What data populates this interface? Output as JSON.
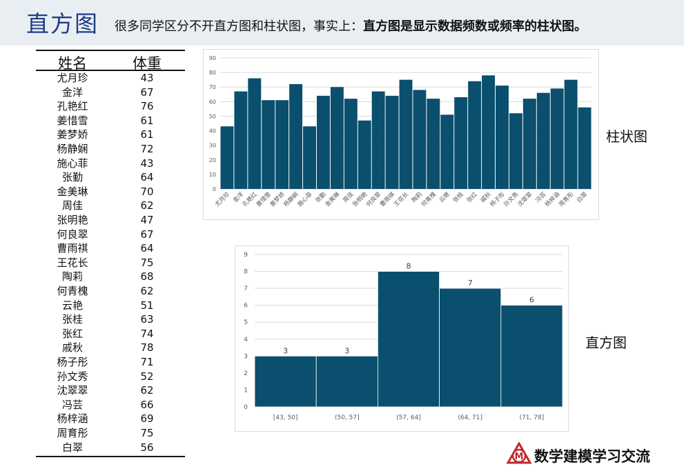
{
  "header": {
    "title": "直方图",
    "subtitle_plain": "很多同学区分不开直方图和柱状图，事实上：",
    "subtitle_bold": "直方图是显示数据频数或频率的柱状图。"
  },
  "table": {
    "headers": [
      "姓名",
      "体重"
    ],
    "rows": [
      [
        "尤月珍",
        "43"
      ],
      [
        "金洋",
        "67"
      ],
      [
        "孔艳红",
        "76"
      ],
      [
        "姜惜雪",
        "61"
      ],
      [
        "姜梦娇",
        "61"
      ],
      [
        "杨静娴",
        "72"
      ],
      [
        "施心菲",
        "43"
      ],
      [
        "张勤",
        "64"
      ],
      [
        "金美琳",
        "70"
      ],
      [
        "周佳",
        "62"
      ],
      [
        "张明艳",
        "47"
      ],
      [
        "何良翠",
        "67"
      ],
      [
        "曹雨祺",
        "64"
      ],
      [
        "王花长",
        "75"
      ],
      [
        "陶莉",
        "68"
      ],
      [
        "何青槐",
        "62"
      ],
      [
        "云艳",
        "51"
      ],
      [
        "张桂",
        "63"
      ],
      [
        "张红",
        "74"
      ],
      [
        "戚秋",
        "78"
      ],
      [
        "杨子彤",
        "71"
      ],
      [
        "孙文秀",
        "52"
      ],
      [
        "沈翠翠",
        "62"
      ],
      [
        "冯芸",
        "66"
      ],
      [
        "杨梓涵",
        "69"
      ],
      [
        "周育彤",
        "75"
      ],
      [
        "白翠",
        "56"
      ]
    ]
  },
  "labels": {
    "bar_chart_label": "柱状图",
    "histogram_label": "直方图"
  },
  "logo": {
    "text": "数学建模学习交流",
    "icon_letter": "M"
  },
  "colors": {
    "bar": "#0a4f6d",
    "header_bg": "#e9eef2",
    "title": "#1f3d86"
  },
  "chart_data": [
    {
      "type": "bar",
      "categories": [
        "尤月珍",
        "金洋",
        "孔艳红",
        "姜惜雪",
        "姜梦娇",
        "杨静娴",
        "施心菲",
        "张勤",
        "金美琳",
        "周佳",
        "张明艳",
        "何良翠",
        "曹雨祺",
        "王花长",
        "陶莉",
        "何青槐",
        "云艳",
        "张桂",
        "张红",
        "戚秋",
        "杨子彤",
        "孙文秀",
        "沈翠翠",
        "冯芸",
        "杨梓涵",
        "周育彤",
        "白翠"
      ],
      "values": [
        43,
        67,
        76,
        61,
        61,
        72,
        43,
        64,
        70,
        62,
        47,
        67,
        64,
        75,
        68,
        62,
        51,
        63,
        74,
        78,
        71,
        52,
        62,
        66,
        69,
        75,
        56
      ],
      "ylim": [
        0,
        90
      ],
      "yticks": [
        0,
        10,
        20,
        30,
        40,
        50,
        60,
        70,
        80,
        90
      ],
      "grid": true
    },
    {
      "type": "bar",
      "categories": [
        "[43, 50]",
        "(50, 57]",
        "(57, 64]",
        "(64, 71]",
        "(71, 78]"
      ],
      "values": [
        3,
        3,
        8,
        7,
        6
      ],
      "ylim": [
        0,
        9
      ],
      "yticks": [
        0,
        1,
        2,
        3,
        4,
        5,
        6,
        7,
        8,
        9
      ],
      "grid": true,
      "data_labels": true
    }
  ]
}
